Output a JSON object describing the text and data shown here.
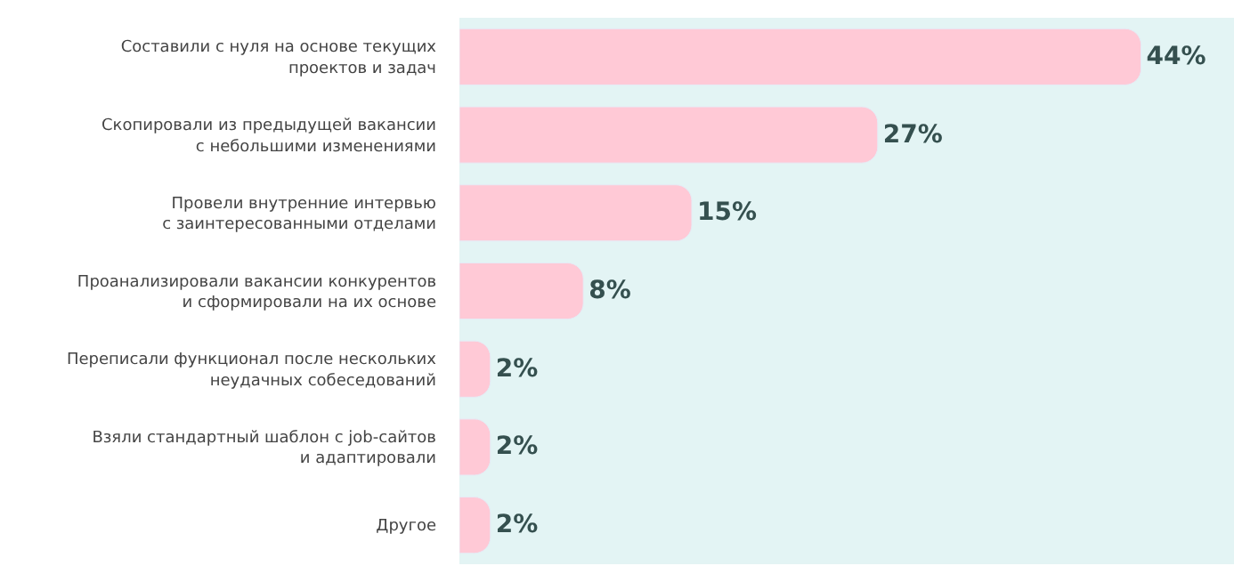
{
  "chart_data": {
    "type": "bar",
    "orientation": "horizontal",
    "categories": [
      "Составили с нуля на основе текущих\nпроектов и задач",
      "Скопировали из предыдущей вакансии\nс небольшими изменениями",
      "Провели внутренние интервью\nс заинтересованными отделами",
      "Проанализировали вакансии конкурентов\nи сформировали на их основе",
      "Переписали функционал после нескольких\nнеудачных собеседований",
      "Взяли стандартный шаблон с job-сайтов\nи адаптировали",
      "Другое"
    ],
    "values": [
      44,
      27,
      15,
      8,
      2,
      2,
      2
    ],
    "value_labels": [
      "44%",
      "27%",
      "15%",
      "8%",
      "2%",
      "2%",
      "2%"
    ],
    "color": "#ffc9d6",
    "xlim": [
      0,
      50
    ],
    "tick_labels": "y",
    "grid": false,
    "legend": false
  }
}
